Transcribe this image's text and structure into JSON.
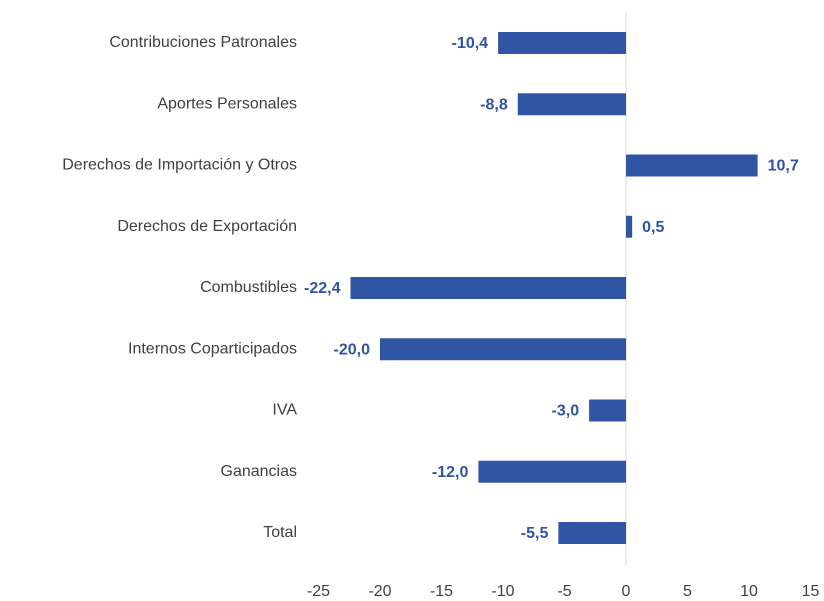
{
  "chart_data": {
    "type": "bar",
    "orientation": "horizontal",
    "categories": [
      "Contribuciones Patronales",
      "Aportes Personales",
      "Derechos de Importación y Otros",
      "Derechos de Exportación",
      "Combustibles",
      "Internos Coparticipados",
      "IVA",
      "Ganancias",
      "Total"
    ],
    "values": [
      -10.4,
      -8.8,
      10.7,
      0.5,
      -22.4,
      -20.0,
      -3.0,
      -12.0,
      -5.5
    ],
    "value_labels": [
      "-10,4",
      "-8,8",
      "10,7",
      "0,5",
      "-22,4",
      "-20,0",
      "-3,0",
      "-12,0",
      "-5,5"
    ],
    "color": "#3055a5",
    "xlim": [
      -25,
      15
    ],
    "xticks": [
      -25,
      -20,
      -15,
      -10,
      -5,
      0,
      5,
      10,
      15
    ],
    "grid": false
  }
}
